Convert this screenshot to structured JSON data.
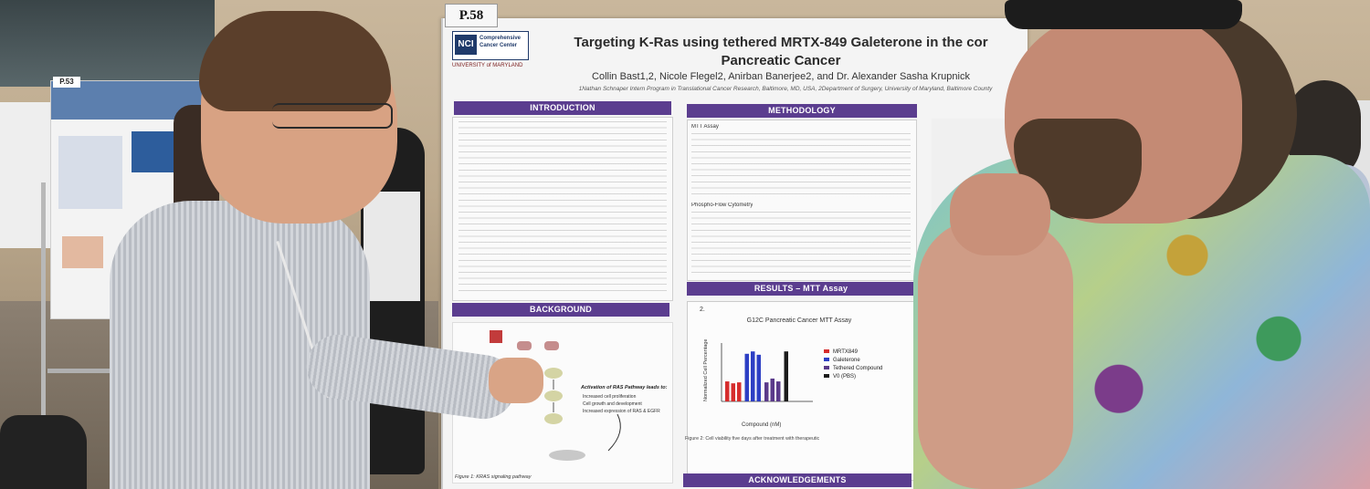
{
  "scene": {
    "description_tag": "poster-session-photo"
  },
  "left_poster": {
    "tag": "P.53"
  },
  "poster": {
    "number": "P.58",
    "logo_nci_mark": "NCI",
    "logo_nci_text": "Comprehensive Cancer Center",
    "logo_umd_text": "UNIVERSITY of MARYLAND",
    "title_line1": "Targeting K-Ras using tethered MRTX-849 Galeterone in the cor",
    "title_line2": "Pancreatic Cancer",
    "authors": "Collin Bast1,2, Nicole Flegel2, Anirban Banerjee2, and Dr. Alexander Sasha Krupnick",
    "affiliation": "1Nathan Schnaper Intern Program in Translational Cancer Research, Baltimore, MD, USA, 2Department of Surgery, University of Maryland, Baltimore County",
    "sections": {
      "introduction": "INTRODUCTION",
      "methodology": "METHODOLOGY",
      "background": "BACKGROUND",
      "results": "RESULTS – MTT Assay",
      "acknowledgements": "ACKNOWLEDGEMENTS"
    },
    "methods_subhead_1": "MTT Assay",
    "methods_subhead_2": "Phospho-Flow Cytometry",
    "figure2_label": "2.",
    "figure2_caption": "Figure 2: Cell viability five days after treatment with therapeutic",
    "figure1_caption": "Figure 1: KRAS signaling pathway",
    "bg_activation_title": "Activation of RAS Pathway leads to:",
    "bg_activation_items": [
      "Increased cell proliferation",
      "Cell growth and development",
      "Increased expression of RAS & EGFR"
    ]
  },
  "chart_data": {
    "type": "bar",
    "title": "G12C Pancreatic Cancer MTT Assay",
    "xlabel": "Compound (nM)",
    "ylabel": "Normalized Cell Percentage",
    "series": [
      {
        "name": "MRTX849",
        "color": "#d62d2d",
        "values": [
          0.42,
          0.38,
          0.4
        ]
      },
      {
        "name": "Galeterone",
        "color": "#2d3fc4",
        "values": [
          1.0,
          1.05,
          0.98
        ]
      },
      {
        "name": "Tethered Compound",
        "color": "#5a3a8a",
        "values": [
          0.4,
          0.48,
          0.42
        ]
      },
      {
        "name": "V0 (PBS)",
        "color": "#1c1c1c",
        "values": [
          1.05
        ]
      }
    ],
    "legend_position": "right",
    "grid": false
  }
}
